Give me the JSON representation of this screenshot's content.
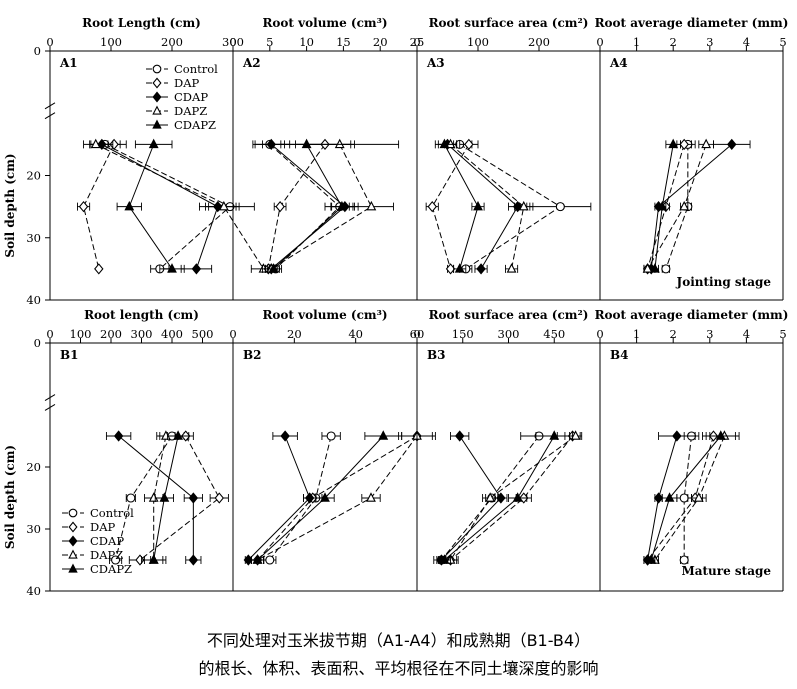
{
  "chart_data": {
    "type": "line",
    "y_axis": {
      "label": "Soil depth (cm)",
      "ticks": [
        0,
        20,
        30,
        40
      ],
      "ylim": [
        0,
        40
      ],
      "depths": [
        15,
        25,
        35
      ]
    },
    "legend": [
      "Control",
      "DAP",
      "CDAP",
      "DAPZ",
      "CDAPZ"
    ],
    "series_styles": {
      "Control": {
        "marker": "circle",
        "fill": "#ffffff",
        "dash": "6,3"
      },
      "DAP": {
        "marker": "diamond",
        "fill": "#ffffff",
        "dash": "6,3"
      },
      "CDAP": {
        "marker": "diamond",
        "fill": "#000000",
        "dash": ""
      },
      "DAPZ": {
        "marker": "triangle",
        "fill": "#ffffff",
        "dash": "6,3"
      },
      "CDAPZ": {
        "marker": "triangle",
        "fill": "#000000",
        "dash": ""
      }
    },
    "rows": [
      {
        "stage": "Jointing stage",
        "panels": [
          {
            "id": "A1",
            "title": "Root Length (cm)",
            "xlim": [
              0,
              300
            ],
            "ticks": [
              0,
              100,
              200,
              300
            ],
            "series": {
              "Control": {
                "values": [
                  90,
                  295,
                  180
                ],
                "err": [
                  25,
                  40,
                  15
                ]
              },
              "DAP": {
                "values": [
                  105,
                  55,
                  80
                ],
                "err": [
                  20,
                  10,
                  0
                ]
              },
              "CDAP": {
                "values": [
                  85,
                  275,
                  240
                ],
                "err": [
                  18,
                  30,
                  25
                ]
              },
              "DAPZ": {
                "values": [
                  75,
                  285,
                  350
                ],
                "err": [
                  20,
                  25,
                  20
                ]
              },
              "CDAPZ": {
                "values": [
                  170,
                  130,
                  200
                ],
                "err": [
                  30,
                  20,
                  20
                ]
              }
            }
          },
          {
            "id": "A2",
            "title": "Root volume (cm³)",
            "xlim": [
              0,
              25
            ],
            "ticks": [
              0,
              5,
              10,
              15,
              20,
              25
            ],
            "series": {
              "Control": {
                "values": [
                  5,
                  14.5,
                  5.8
                ],
                "err": [
                  2,
                  2,
                  0.8
                ]
              },
              "DAP": {
                "values": [
                  12.5,
                  6.4,
                  4.8
                ],
                "err": [
                  4,
                  0.8,
                  0.8
                ]
              },
              "CDAP": {
                "values": [
                  5.2,
                  15.2,
                  5.2
                ],
                "err": [
                  2.5,
                  1.8,
                  0.8
                ]
              },
              "DAPZ": {
                "values": [
                  14.5,
                  18.8,
                  5.2
                ],
                "err": [
                  8,
                  3,
                  0.8
                ]
              },
              "CDAPZ": {
                "values": [
                  10,
                  14.8,
                  5.5
                ],
                "err": [
                  6,
                  1.5,
                  0.8
                ]
              }
            }
          },
          {
            "id": "A3",
            "title": "Root surface area (cm²)",
            "xlim": [
              0,
              300
            ],
            "ticks": [
              0,
              100,
              200
            ],
            "series": {
              "Control": {
                "values": [
                  70,
                  235,
                  80
                ],
                "err": [
                  20,
                  50,
                  10
                ]
              },
              "DAP": {
                "values": [
                  85,
                  25,
                  55
                ],
                "err": [
                  15,
                  10,
                  5
                ]
              },
              "CDAP": {
                "values": [
                  50,
                  165,
                  105
                ],
                "err": [
                  15,
                  15,
                  10
                ]
              },
              "DAPZ": {
                "values": [
                  55,
                  175,
                  155
                ],
                "err": [
                  10,
                  15,
                  10
                ]
              },
              "CDAPZ": {
                "values": [
                  45,
                  100,
                  70
                ],
                "err": [
                  15,
                  10,
                  10
                ]
              }
            }
          },
          {
            "id": "A4",
            "title": "Root average diameter (mm)",
            "xlim": [
              0,
              5
            ],
            "ticks": [
              0,
              1,
              2,
              3,
              4,
              5
            ],
            "series": {
              "Control": {
                "values": [
                  2.4,
                  2.4,
                  1.8
                ],
                "err": [
                  0.2,
                  0.1,
                  0.1
                ]
              },
              "DAP": {
                "values": [
                  2.3,
                  1.8,
                  1.3
                ],
                "err": [
                  0.2,
                  0.1,
                  0.1
                ]
              },
              "CDAP": {
                "values": [
                  3.6,
                  1.6,
                  1.4
                ],
                "err": [
                  0.5,
                  0.1,
                  0.1
                ]
              },
              "DAPZ": {
                "values": [
                  2.9,
                  2.3,
                  1.3
                ],
                "err": [
                  0.2,
                  0.1,
                  0.1
                ]
              },
              "CDAPZ": {
                "values": [
                  2,
                  1.7,
                  1.5
                ],
                "err": [
                  0.2,
                  0.1,
                  0.1
                ]
              }
            }
          }
        ]
      },
      {
        "stage": "Mature stage",
        "panels": [
          {
            "id": "B1",
            "title": "Root length (cm)",
            "xlim": [
              0,
              600
            ],
            "ticks": [
              0,
              100,
              200,
              300,
              400,
              500
            ],
            "series": {
              "Control": {
                "values": [
                  400,
                  265,
                  215
                ],
                "err": [
                  40,
                  15,
                  20
                ]
              },
              "DAP": {
                "values": [
                  445,
                  555,
                  295
                ],
                "err": [
                  25,
                  30,
                  35
                ]
              },
              "CDAP": {
                "values": [
                  225,
                  470,
                  470
                ],
                "err": [
                  40,
                  30,
                  25
                ]
              },
              "DAPZ": {
                "values": [
                  380,
                  340,
                  340
                ],
                "err": [
                  30,
                  30,
                  30
                ]
              },
              "CDAPZ": {
                "values": [
                  420,
                  375,
                  340
                ],
                "err": [
                  35,
                  30,
                  40
                ]
              }
            }
          },
          {
            "id": "B2",
            "title": "Root volume (cm³)",
            "xlim": [
              0,
              60
            ],
            "ticks": [
              0,
              20,
              40,
              60
            ],
            "series": {
              "Control": {
                "values": [
                  32,
                  27,
                  12
                ],
                "err": [
                  3,
                  2,
                  2
                ]
              },
              "DAP": {
                "values": [
                  60,
                  26,
                  8
                ],
                "err": [
                  5,
                  3,
                  2
                ]
              },
              "CDAP": {
                "values": [
                  17,
                  25,
                  5
                ],
                "err": [
                  4,
                  2,
                  1
                ]
              },
              "DAPZ": {
                "values": [
                  60,
                  45,
                  8
                ],
                "err": [
                  6,
                  3,
                  2
                ]
              },
              "CDAPZ": {
                "values": [
                  49,
                  30,
                  8
                ],
                "err": [
                  6,
                  3,
                  2
                ]
              }
            }
          },
          {
            "id": "B3",
            "title": "Root surface area (cm²)",
            "xlim": [
              0,
              600
            ],
            "ticks": [
              0,
              150,
              300,
              450
            ],
            "series": {
              "Control": {
                "values": [
                  400,
                  245,
                  80
                ],
                "err": [
                  60,
                  20,
                  25
                ]
              },
              "DAP": {
                "values": [
                  510,
                  350,
                  110
                ],
                "err": [
                  25,
                  25,
                  25
                ]
              },
              "CDAP": {
                "values": [
                  140,
                  275,
                  80
                ],
                "err": [
                  30,
                  20,
                  15
                ]
              },
              "DAPZ": {
                "values": [
                  520,
                  240,
                  110
                ],
                "err": [
                  20,
                  25,
                  20
                ]
              },
              "CDAPZ": {
                "values": [
                  450,
                  330,
                  90
                ],
                "err": [
                  60,
                  30,
                  20
                ]
              }
            }
          },
          {
            "id": "B4",
            "title": "Root average diameter (mm)",
            "xlim": [
              0,
              5
            ],
            "ticks": [
              0,
              1,
              2,
              3,
              4,
              5
            ],
            "series": {
              "Control": {
                "values": [
                  2.5,
                  2.3,
                  2.3
                ],
                "err": [
                  0.2,
                  0.2,
                  0.1
                ]
              },
              "DAP": {
                "values": [
                  3.1,
                  2.6,
                  1.3
                ],
                "err": [
                  0.3,
                  0.2,
                  0.1
                ]
              },
              "CDAP": {
                "values": [
                  2.1,
                  1.6,
                  1.3
                ],
                "err": [
                  0.5,
                  0.1,
                  0.1
                ]
              },
              "DAPZ": {
                "values": [
                  3.4,
                  2.7,
                  1.5
                ],
                "err": [
                  0.4,
                  0.2,
                  0.1
                ]
              },
              "CDAPZ": {
                "values": [
                  3.3,
                  1.9,
                  1.4
                ],
                "err": [
                  0.4,
                  0.2,
                  0.1
                ]
              }
            }
          }
        ]
      }
    ]
  },
  "caption": {
    "line1": "不同处理对玉米拔节期（A1-A4）和成熟期（B1-B4）",
    "line2": "的根长、体积、表面积、平均根径在不同土壤深度的影响"
  }
}
